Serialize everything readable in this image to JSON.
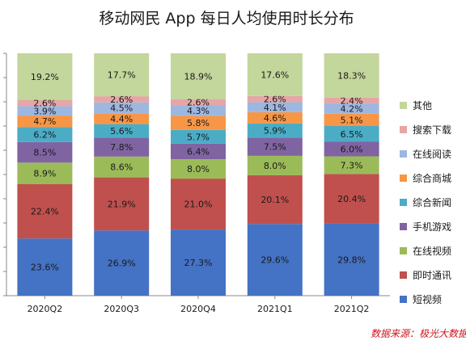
{
  "chart_data": {
    "type": "bar",
    "stacked": true,
    "normalized_percent": true,
    "title": "移动网民 App 每日人均使用时长分布",
    "xlabel": "",
    "ylabel": "",
    "ylim": [
      0,
      100
    ],
    "grid": false,
    "legend_position": "right",
    "value_unit": "%",
    "categories": [
      "2020Q2",
      "2020Q3",
      "2020Q4",
      "2021Q1",
      "2021Q2"
    ],
    "series": [
      {
        "name": "短视频",
        "color": "#4472c4",
        "values": [
          23.6,
          26.9,
          27.3,
          29.6,
          29.8
        ]
      },
      {
        "name": "即时通讯",
        "color": "#c0504d",
        "values": [
          22.4,
          21.9,
          21.0,
          20.1,
          20.4
        ]
      },
      {
        "name": "在线视频",
        "color": "#9bbb59",
        "values": [
          8.9,
          8.6,
          8.0,
          8.0,
          7.3
        ]
      },
      {
        "name": "手机游戏",
        "color": "#8064a2",
        "values": [
          8.5,
          7.8,
          6.4,
          7.5,
          6.0
        ]
      },
      {
        "name": "综合新闻",
        "color": "#4bacc6",
        "values": [
          6.2,
          5.6,
          5.7,
          5.9,
          6.5
        ]
      },
      {
        "name": "综合商城",
        "color": "#f79646",
        "values": [
          4.7,
          4.4,
          5.8,
          4.6,
          5.1
        ]
      },
      {
        "name": "在线阅读",
        "color": "#9db7e0",
        "values": [
          3.9,
          4.5,
          4.3,
          4.1,
          4.2
        ]
      },
      {
        "name": "搜索下载",
        "color": "#e6a6a6",
        "values": [
          2.6,
          2.6,
          2.6,
          2.6,
          2.4
        ]
      },
      {
        "name": "其他",
        "color": "#c3d69b",
        "values": [
          19.2,
          17.7,
          18.9,
          17.6,
          18.3
        ]
      }
    ]
  },
  "source": "数据来源：极光大数据"
}
